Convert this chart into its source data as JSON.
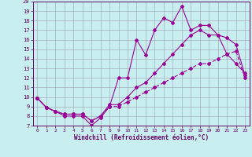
{
  "xlabel": "Windchill (Refroidissement éolien,°C)",
  "ylabel": "",
  "xlim": [
    -0.5,
    23.5
  ],
  "ylim": [
    7,
    20
  ],
  "xticks": [
    0,
    1,
    2,
    3,
    4,
    5,
    6,
    7,
    8,
    9,
    10,
    11,
    12,
    13,
    14,
    15,
    16,
    17,
    18,
    19,
    20,
    21,
    22,
    23
  ],
  "yticks": [
    7,
    8,
    9,
    10,
    11,
    12,
    13,
    14,
    15,
    16,
    17,
    18,
    19,
    20
  ],
  "line_color": "#990099",
  "bg_color": "#c8eef0",
  "grid_color": "#9999aa",
  "line1_x": [
    0,
    1,
    2,
    3,
    4,
    5,
    6,
    7,
    8,
    9,
    10,
    11,
    12,
    13,
    14,
    15,
    16,
    17,
    18,
    19,
    20,
    21,
    22,
    23
  ],
  "line1_y": [
    9.9,
    8.9,
    8.5,
    8.0,
    8.0,
    8.0,
    7.0,
    7.8,
    9.0,
    12.0,
    12.0,
    16.0,
    14.4,
    17.0,
    18.3,
    17.8,
    19.5,
    17.0,
    17.5,
    17.5,
    16.5,
    14.5,
    13.5,
    12.5
  ],
  "line2_x": [
    0,
    1,
    2,
    3,
    4,
    5,
    6,
    7,
    8,
    9,
    10,
    11,
    12,
    13,
    14,
    15,
    16,
    17,
    18,
    19,
    20,
    21,
    22,
    23
  ],
  "line2_y": [
    9.9,
    8.9,
    8.5,
    8.2,
    8.2,
    8.2,
    7.5,
    8.0,
    9.2,
    9.2,
    10.0,
    11.0,
    11.5,
    12.5,
    13.5,
    14.5,
    15.5,
    16.5,
    17.0,
    16.5,
    16.5,
    16.2,
    15.5,
    12.3
  ],
  "line3_x": [
    0,
    1,
    2,
    3,
    4,
    5,
    6,
    7,
    8,
    9,
    10,
    11,
    12,
    13,
    14,
    15,
    16,
    17,
    18,
    19,
    20,
    21,
    22,
    23
  ],
  "line3_y": [
    9.9,
    8.9,
    8.5,
    8.2,
    8.2,
    8.2,
    7.5,
    8.0,
    9.0,
    9.0,
    9.5,
    10.0,
    10.5,
    11.0,
    11.5,
    12.0,
    12.5,
    13.0,
    13.5,
    13.5,
    14.0,
    14.5,
    14.8,
    12.0
  ],
  "marker": "D",
  "marker_size": 2.0,
  "linewidth": 0.8
}
